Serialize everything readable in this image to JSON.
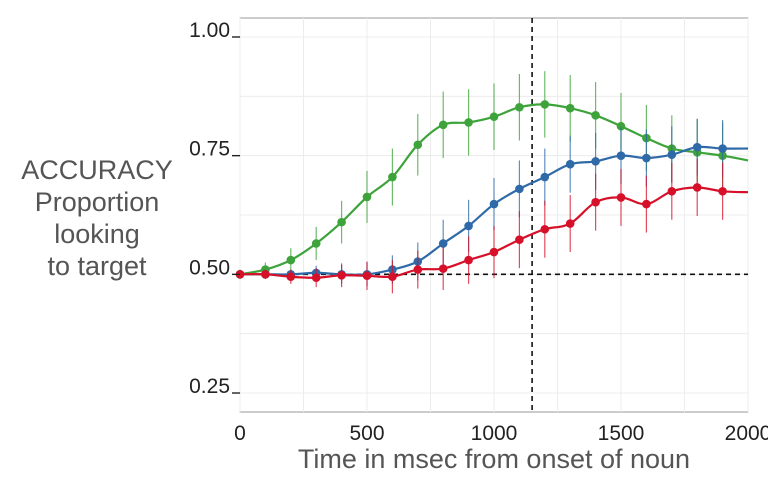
{
  "chart_data": {
    "type": "line",
    "title": "",
    "xlabel": "Time in msec from onset of noun",
    "ylabel": [
      "ACCURACY",
      "Proportion",
      "looking",
      "to target"
    ],
    "xlim": [
      0,
      2000
    ],
    "ylim": [
      0.21,
      1.04
    ],
    "x_ticks": [
      "0",
      "500",
      "1000",
      "1500",
      "2000"
    ],
    "y_ticks": [
      "0.25",
      "0.50",
      "0.75",
      "1.00"
    ],
    "grid": true,
    "legend": "none",
    "reference_lines": {
      "x": 1150,
      "y": 0.5
    },
    "x": [
      0,
      100,
      200,
      300,
      400,
      500,
      600,
      700,
      800,
      900,
      1000,
      1100,
      1200,
      1300,
      1400,
      1500,
      1600,
      1700,
      1800,
      1900
    ],
    "series": [
      {
        "color": "#3da33a",
        "values": [
          0.5,
          0.51,
          0.53,
          0.565,
          0.61,
          0.663,
          0.705,
          0.773,
          0.815,
          0.82,
          0.832,
          0.852,
          0.858,
          0.85,
          0.835,
          0.812,
          0.787,
          0.765,
          0.757,
          0.75
        ],
        "errors": [
          0.01,
          0.015,
          0.025,
          0.035,
          0.045,
          0.055,
          0.06,
          0.065,
          0.07,
          0.07,
          0.07,
          0.07,
          0.07,
          0.07,
          0.07,
          0.07,
          0.07,
          0.07,
          0.07,
          0.07
        ],
        "end": 0.74
      },
      {
        "color": "#2f6aa8",
        "values": [
          0.5,
          0.5,
          0.5,
          0.503,
          0.5,
          0.5,
          0.51,
          0.527,
          0.565,
          0.602,
          0.648,
          0.68,
          0.705,
          0.732,
          0.738,
          0.75,
          0.745,
          0.752,
          0.768,
          0.765
        ],
        "errors": [
          0.005,
          0.008,
          0.01,
          0.015,
          0.02,
          0.025,
          0.03,
          0.04,
          0.05,
          0.055,
          0.055,
          0.06,
          0.06,
          0.06,
          0.06,
          0.06,
          0.06,
          0.06,
          0.06,
          0.06
        ],
        "end": 0.765
      },
      {
        "color": "#d7102a",
        "values": [
          0.5,
          0.5,
          0.495,
          0.493,
          0.498,
          0.497,
          0.495,
          0.51,
          0.512,
          0.53,
          0.547,
          0.573,
          0.595,
          0.607,
          0.652,
          0.662,
          0.648,
          0.675,
          0.683,
          0.675
        ],
        "errors": [
          0.005,
          0.01,
          0.015,
          0.02,
          0.025,
          0.03,
          0.035,
          0.04,
          0.045,
          0.05,
          0.055,
          0.06,
          0.06,
          0.06,
          0.06,
          0.06,
          0.06,
          0.06,
          0.06,
          0.06
        ],
        "end": 0.673
      }
    ]
  }
}
